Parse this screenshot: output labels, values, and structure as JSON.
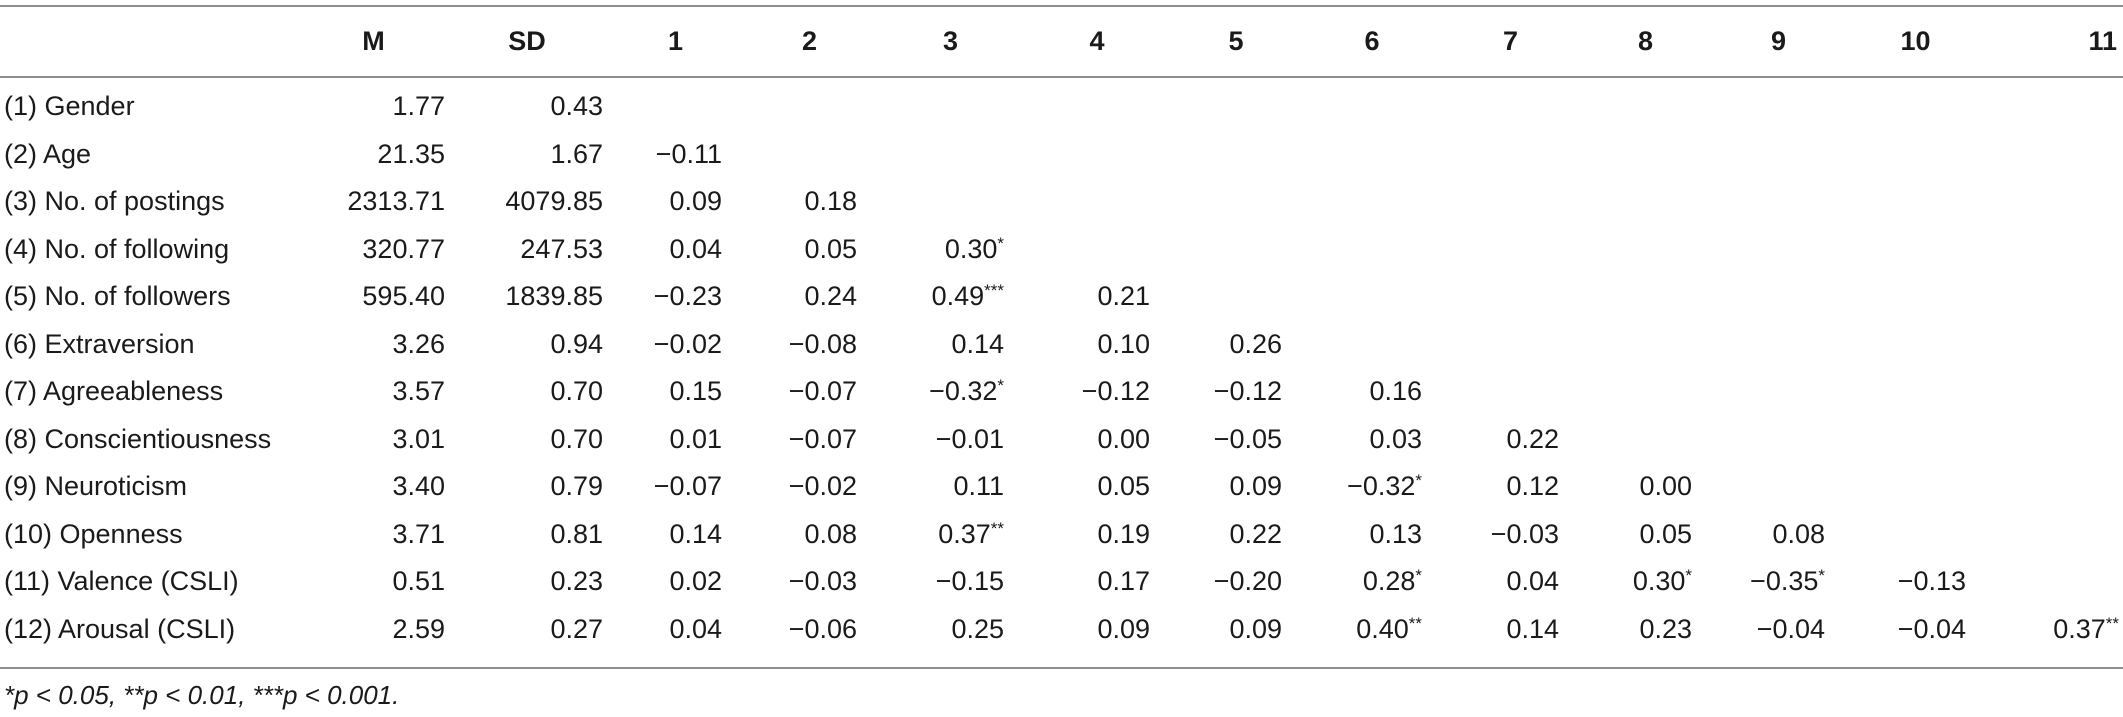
{
  "table": {
    "columns": [
      "M",
      "SD",
      "1",
      "2",
      "3",
      "4",
      "5",
      "6",
      "7",
      "8",
      "9",
      "10",
      "11"
    ],
    "rows": [
      {
        "label": "(1) Gender",
        "m": "1.77",
        "sd": "0.43",
        "cells": [
          "",
          "",
          "",
          "",
          "",
          "",
          "",
          "",
          "",
          "",
          ""
        ]
      },
      {
        "label": "(2) Age",
        "m": "21.35",
        "sd": "1.67",
        "cells": [
          "−0.11",
          "",
          "",
          "",
          "",
          "",
          "",
          "",
          "",
          "",
          ""
        ]
      },
      {
        "label": "(3) No. of postings",
        "m": "2313.71",
        "sd": "4079.85",
        "cells": [
          "0.09",
          "0.18",
          "",
          "",
          "",
          "",
          "",
          "",
          "",
          "",
          ""
        ]
      },
      {
        "label": "(4) No. of following",
        "m": "320.77",
        "sd": "247.53",
        "cells": [
          "0.04",
          "0.05",
          "0.30*",
          "",
          "",
          "",
          "",
          "",
          "",
          "",
          ""
        ]
      },
      {
        "label": "(5) No. of followers",
        "m": "595.40",
        "sd": "1839.85",
        "cells": [
          "−0.23",
          "0.24",
          "0.49***",
          "0.21",
          "",
          "",
          "",
          "",
          "",
          "",
          ""
        ]
      },
      {
        "label": "(6) Extraversion",
        "m": "3.26",
        "sd": "0.94",
        "cells": [
          "−0.02",
          "−0.08",
          "0.14",
          "0.10",
          "0.26",
          "",
          "",
          "",
          "",
          "",
          ""
        ]
      },
      {
        "label": "(7) Agreeableness",
        "m": "3.57",
        "sd": "0.70",
        "cells": [
          "0.15",
          "−0.07",
          "−0.32*",
          "−0.12",
          "−0.12",
          "0.16",
          "",
          "",
          "",
          "",
          ""
        ]
      },
      {
        "label": "(8) Conscientiousness",
        "m": "3.01",
        "sd": "0.70",
        "cells": [
          "0.01",
          "−0.07",
          "−0.01",
          "0.00",
          "−0.05",
          "0.03",
          "0.22",
          "",
          "",
          "",
          ""
        ]
      },
      {
        "label": "(9) Neuroticism",
        "m": "3.40",
        "sd": "0.79",
        "cells": [
          "−0.07",
          "−0.02",
          "0.11",
          "0.05",
          "0.09",
          "−0.32*",
          "0.12",
          "0.00",
          "",
          "",
          ""
        ]
      },
      {
        "label": "(10) Openness",
        "m": "3.71",
        "sd": "0.81",
        "cells": [
          "0.14",
          "0.08",
          "0.37**",
          "0.19",
          "0.22",
          "0.13",
          "−0.03",
          "0.05",
          "0.08",
          "",
          ""
        ]
      },
      {
        "label": "(11) Valence (CSLI)",
        "m": "0.51",
        "sd": "0.23",
        "cells": [
          "0.02",
          "−0.03",
          "−0.15",
          "0.17",
          "−0.20",
          "0.28*",
          "0.04",
          "0.30*",
          "−0.35*",
          "−0.13",
          ""
        ]
      },
      {
        "label": "(12) Arousal (CSLI)",
        "m": "2.59",
        "sd": "0.27",
        "cells": [
          "0.04",
          "−0.06",
          "0.25",
          "0.09",
          "0.09",
          "0.40**",
          "0.14",
          "0.23",
          "−0.04",
          "−0.04",
          "0.37**"
        ]
      }
    ]
  },
  "footnote": "*p < 0.05, **p < 0.01, ***p < 0.001."
}
